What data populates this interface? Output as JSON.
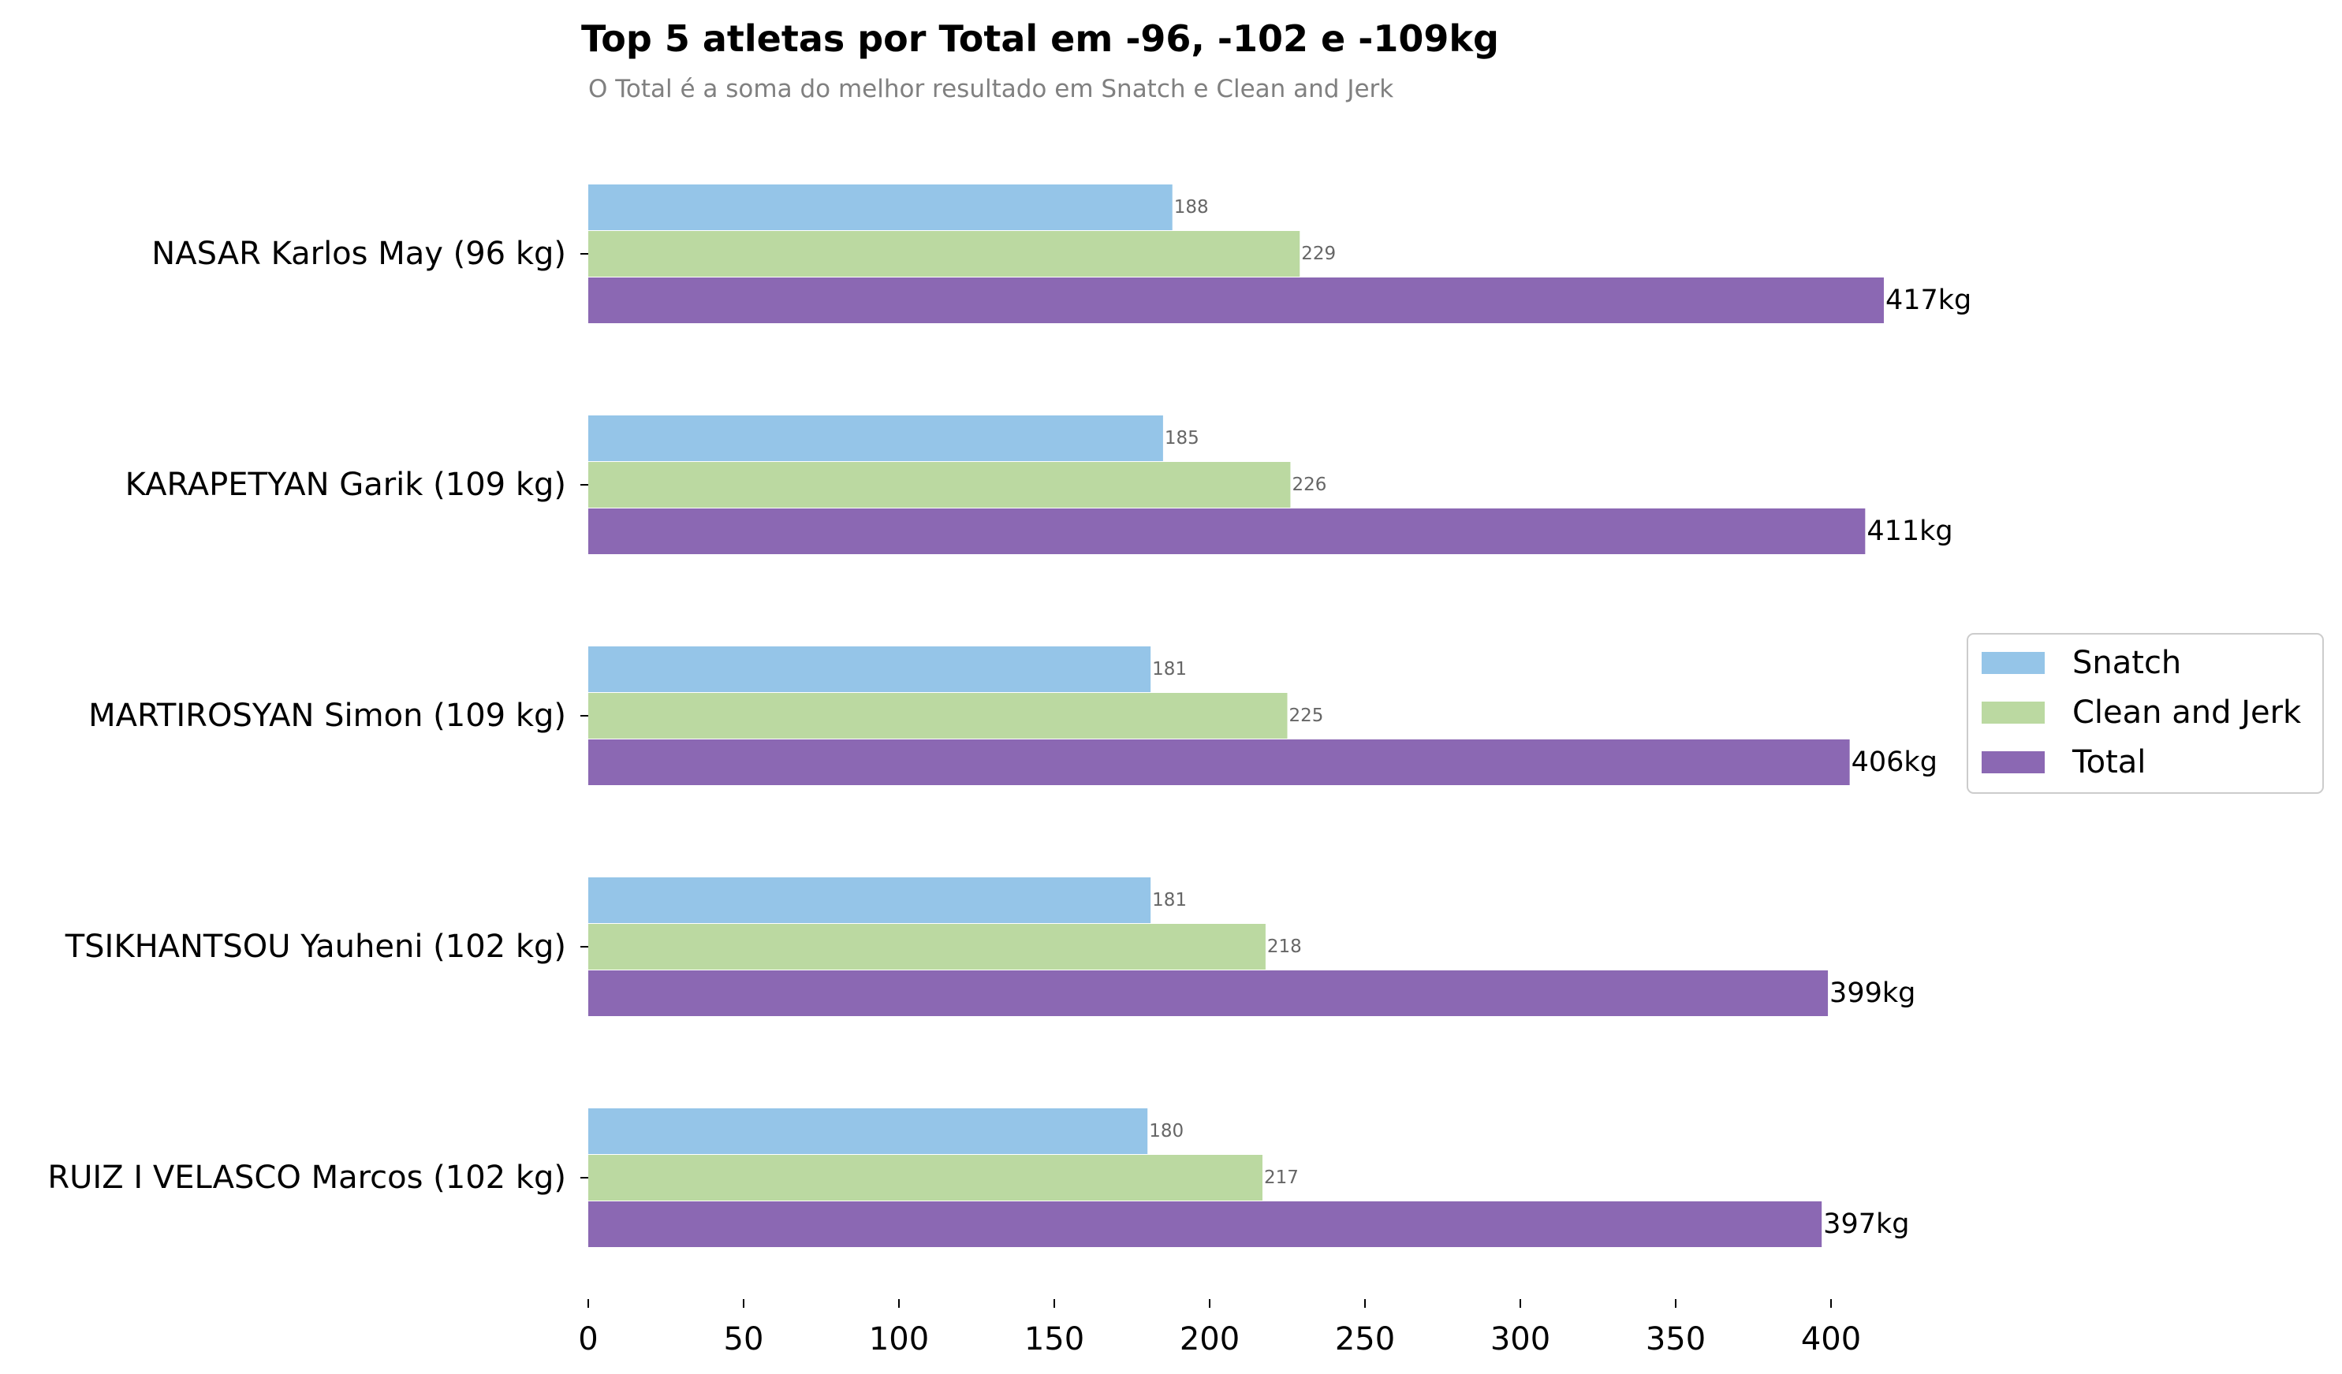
{
  "chart_data": {
    "type": "bar",
    "orientation": "horizontal",
    "title": "Top 5 atletas por Total em -96, -102 e -109kg",
    "subtitle": "O Total é a soma do melhor resultado em Snatch e Clean and Jerk",
    "categories": [
      "NASAR Karlos May (96 kg)",
      "KARAPETYAN Garik (109 kg)",
      "MARTIROSYAN Simon (109 kg)",
      "TSIKHANTSOU Yauheni (102 kg)",
      "RUIZ I VELASCO Marcos (102 kg)"
    ],
    "series": [
      {
        "name": "Snatch",
        "values": [
          188,
          185,
          181,
          181,
          180
        ],
        "color": "#95c5e8",
        "label_suffix": ""
      },
      {
        "name": "Clean and Jerk",
        "values": [
          229,
          226,
          225,
          218,
          217
        ],
        "color": "#bbd9a1",
        "label_suffix": ""
      },
      {
        "name": "Total",
        "values": [
          417,
          411,
          406,
          399,
          397
        ],
        "color": "#8b68b3",
        "label_suffix": "kg"
      }
    ],
    "xticks": [
      0,
      50,
      100,
      150,
      200,
      250,
      300,
      350,
      400
    ],
    "xlim": [
      0,
      417
    ],
    "xlabel": "",
    "ylabel": "",
    "grid": false,
    "legend_position": "center-right"
  }
}
